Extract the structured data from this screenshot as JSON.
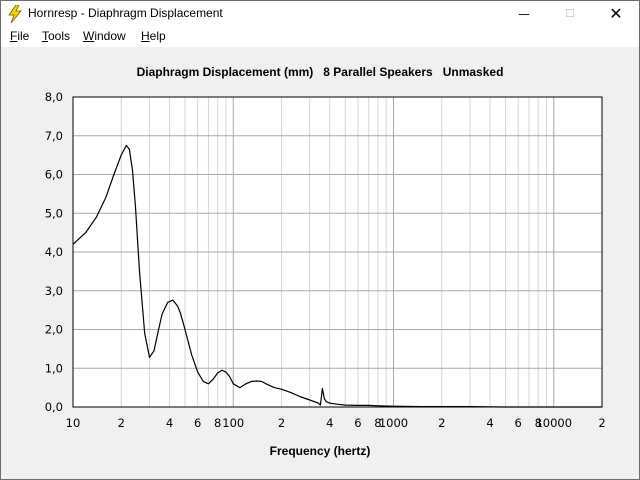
{
  "window": {
    "title": "Hornresp - Diaphragm Displacement",
    "controls": {
      "minimize": "—",
      "maximize": "☐",
      "close": "✕"
    }
  },
  "menu": [
    {
      "label": "File",
      "mnemonic": "F",
      "rest": "ile"
    },
    {
      "label": "Tools",
      "mnemonic": "T",
      "rest": "ools"
    },
    {
      "label": "Window",
      "mnemonic": "W",
      "rest": "indow"
    },
    {
      "label": "Help",
      "mnemonic": "H",
      "rest": "elp"
    }
  ],
  "chart_data": {
    "type": "line",
    "title": "Diaphragm Displacement (mm)   8 Parallel Speakers   Unmasked",
    "xlabel": "Frequency (hertz)",
    "ylabel": "",
    "x_scale": "log",
    "xlim": [
      10,
      20000
    ],
    "ylim": [
      0,
      8
    ],
    "y_ticks": [
      "0,0",
      "1,0",
      "2,0",
      "3,0",
      "4,0",
      "5,0",
      "6,0",
      "7,0",
      "8,0"
    ],
    "x_ticks": [
      {
        "x": 10,
        "label": "10"
      },
      {
        "x": 20,
        "label": "2"
      },
      {
        "x": 40,
        "label": "4"
      },
      {
        "x": 60,
        "label": "6"
      },
      {
        "x": 80,
        "label": "8"
      },
      {
        "x": 100,
        "label": "100"
      },
      {
        "x": 200,
        "label": "2"
      },
      {
        "x": 400,
        "label": "4"
      },
      {
        "x": 600,
        "label": "6"
      },
      {
        "x": 800,
        "label": "8"
      },
      {
        "x": 1000,
        "label": "1000"
      },
      {
        "x": 2000,
        "label": "2"
      },
      {
        "x": 4000,
        "label": "4"
      },
      {
        "x": 6000,
        "label": "6"
      },
      {
        "x": 8000,
        "label": "8"
      },
      {
        "x": 10000,
        "label": "10000"
      },
      {
        "x": 20000,
        "label": "2"
      }
    ],
    "grid": true,
    "series": [
      {
        "color": "#000000",
        "x": [
          10,
          12,
          14,
          16,
          18,
          20,
          21.5,
          22.5,
          23.5,
          24.5,
          26,
          28,
          30,
          32,
          34,
          36,
          39,
          42,
          45,
          47,
          50,
          55,
          60,
          65,
          70,
          75,
          80,
          85,
          90,
          95,
          100,
          110,
          120,
          130,
          140,
          150,
          160,
          180,
          200,
          230,
          260,
          300,
          340,
          350,
          360,
          370,
          380,
          400,
          450,
          500,
          600,
          700,
          800,
          1000,
          1500,
          2000,
          3000,
          5000,
          10000,
          20000
        ],
        "y": [
          4.2,
          4.5,
          4.9,
          5.4,
          6.0,
          6.5,
          6.75,
          6.65,
          6.1,
          5.2,
          3.5,
          1.9,
          1.28,
          1.45,
          1.95,
          2.4,
          2.7,
          2.76,
          2.6,
          2.4,
          2.0,
          1.35,
          0.9,
          0.66,
          0.6,
          0.72,
          0.88,
          0.95,
          0.9,
          0.78,
          0.6,
          0.5,
          0.6,
          0.66,
          0.67,
          0.66,
          0.6,
          0.5,
          0.46,
          0.37,
          0.27,
          0.18,
          0.1,
          0.05,
          0.48,
          0.22,
          0.14,
          0.1,
          0.07,
          0.05,
          0.04,
          0.04,
          0.03,
          0.02,
          0.01,
          0.01,
          0.01,
          0.0,
          0.0,
          0.0
        ]
      }
    ]
  }
}
